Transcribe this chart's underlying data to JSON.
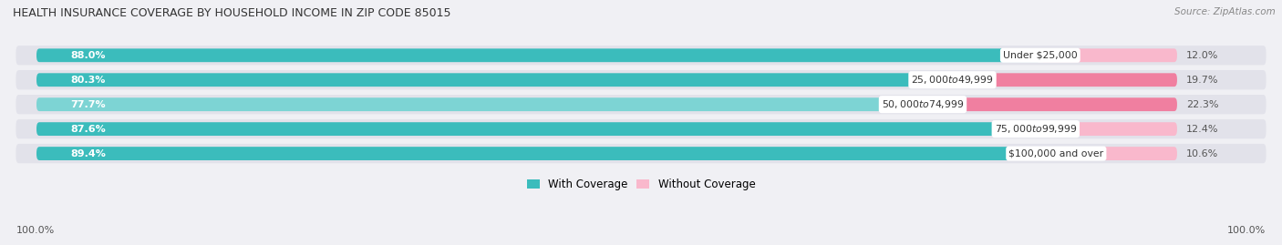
{
  "title": "HEALTH INSURANCE COVERAGE BY HOUSEHOLD INCOME IN ZIP CODE 85015",
  "source": "Source: ZipAtlas.com",
  "categories": [
    "Under $25,000",
    "$25,000 to $49,999",
    "$50,000 to $74,999",
    "$75,000 to $99,999",
    "$100,000 and over"
  ],
  "with_coverage": [
    88.0,
    80.3,
    77.7,
    87.6,
    89.4
  ],
  "without_coverage": [
    12.0,
    19.7,
    22.3,
    12.4,
    10.6
  ],
  "color_coverage": "#3bbcbc",
  "color_no_coverage": "#f07fa0",
  "color_no_coverage_light": "#f9b8cc",
  "bg_color": "#f0f0f4",
  "row_bg_color": "#e2e2ea",
  "label_coverage": "With Coverage",
  "label_no_coverage": "Without Coverage",
  "left_axis_label": "100.0%",
  "right_axis_label": "100.0%"
}
